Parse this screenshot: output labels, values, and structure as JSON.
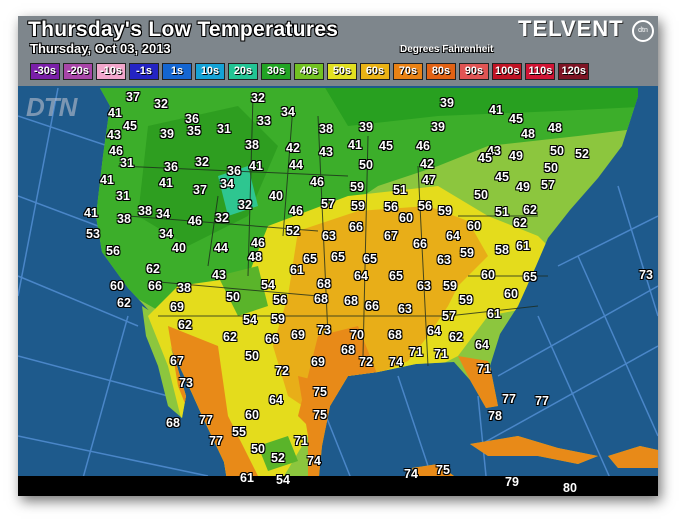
{
  "header": {
    "title": "Thursday's Low Temperatures",
    "date": "Thursday, Oct 03, 2013",
    "units": "Degrees Fahrenheit",
    "logo": "TELVENT",
    "logo_badge": "dtn",
    "watermark": "DTN"
  },
  "legend": [
    {
      "label": "-30s",
      "color": "#7a1fa8"
    },
    {
      "label": "-20s",
      "color": "#a845a8"
    },
    {
      "label": "-10s",
      "color": "#f2a6cc"
    },
    {
      "label": "-1s",
      "color": "#2424c4"
    },
    {
      "label": "1s",
      "color": "#1466d2"
    },
    {
      "label": "10s",
      "color": "#14a2d6"
    },
    {
      "label": "20s",
      "color": "#22c494"
    },
    {
      "label": "30s",
      "color": "#22a424"
    },
    {
      "label": "40s",
      "color": "#72c222"
    },
    {
      "label": "50s",
      "color": "#e2e020"
    },
    {
      "label": "60s",
      "color": "#eab214"
    },
    {
      "label": "70s",
      "color": "#ea8214"
    },
    {
      "label": "80s",
      "color": "#e26214"
    },
    {
      "label": "90s",
      "color": "#e05454"
    },
    {
      "label": "100s",
      "color": "#c01424"
    },
    {
      "label": "110s",
      "color": "#d01434"
    },
    {
      "label": "120s",
      "color": "#7e1424"
    }
  ],
  "temperatures": [
    "37",
    "32",
    "32",
    "39",
    "41",
    "45",
    "41",
    "34",
    "36",
    "33",
    "45",
    "38",
    "39",
    "39",
    "48",
    "48",
    "43",
    "35",
    "39",
    "31",
    "38",
    "41",
    "45",
    "46",
    "46",
    "42",
    "43",
    "43",
    "45",
    "49",
    "50",
    "52",
    "31",
    "36",
    "32",
    "36",
    "41",
    "44",
    "50",
    "42",
    "41",
    "41",
    "37",
    "34",
    "46",
    "59",
    "47",
    "45",
    "49",
    "57",
    "50",
    "31",
    "40",
    "57",
    "51",
    "50",
    "41",
    "38",
    "38",
    "34",
    "46",
    "32",
    "32",
    "46",
    "59",
    "56",
    "60",
    "56",
    "59",
    "51",
    "62",
    "53",
    "34",
    "52",
    "63",
    "66",
    "67",
    "66",
    "64",
    "60",
    "62",
    "56",
    "40",
    "44",
    "46",
    "48",
    "65",
    "65",
    "65",
    "63",
    "59",
    "58",
    "61",
    "62",
    "61",
    "43",
    "64",
    "65",
    "60",
    "65",
    "73",
    "60",
    "66",
    "38",
    "54",
    "68",
    "68",
    "63",
    "59",
    "62",
    "69",
    "50",
    "56",
    "68",
    "66",
    "63",
    "59",
    "60",
    "62",
    "54",
    "59",
    "73",
    "70",
    "68",
    "57",
    "64",
    "61",
    "62",
    "66",
    "69",
    "62",
    "64",
    "68",
    "67",
    "50",
    "72",
    "69",
    "72",
    "74",
    "71",
    "71",
    "73",
    "75",
    "71",
    "77",
    "60",
    "64",
    "75",
    "78",
    "77",
    "77",
    "68",
    "77",
    "55",
    "50",
    "71",
    "52",
    "74",
    "61",
    "54",
    "74",
    "75",
    "79",
    "80"
  ]
}
